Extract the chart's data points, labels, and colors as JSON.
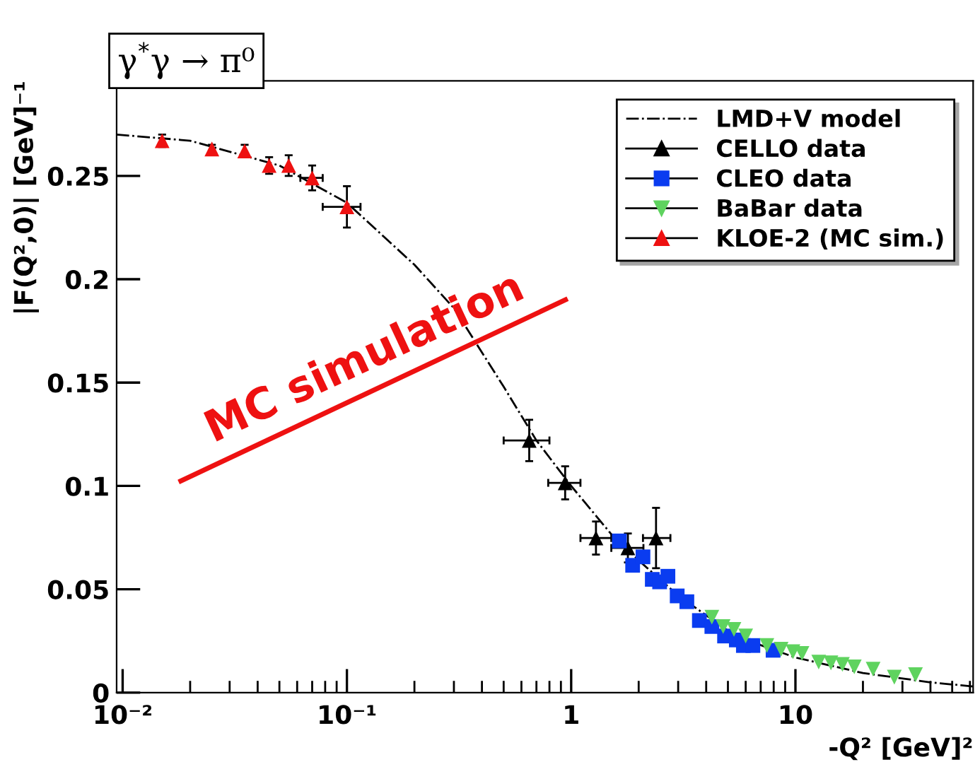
{
  "chart_data": {
    "type": "scatter",
    "title": "γ$^{*}$γ → π⁰",
    "xlabel": "-Q² [GeV]²",
    "ylabel": "|F(Q²,0)| [GeV]⁻¹",
    "log": "x",
    "xlim": [
      0.0094,
      62
    ],
    "ylim": [
      0,
      0.296
    ],
    "xticks": [
      {
        "value": 0.01,
        "label": "10⁻²"
      },
      {
        "value": 0.1,
        "label": "10⁻¹"
      },
      1,
      10
    ],
    "yticks": [
      0,
      0.05,
      0.1,
      0.15,
      0.2,
      0.25
    ],
    "grid": false,
    "legend": "top right",
    "annotations": [
      "MC simulation"
    ],
    "series": [
      {
        "name": "LMD+V model",
        "type": "line",
        "line_style": "dashdot",
        "color": "#000000",
        "x": [
          0.0094,
          0.02,
          0.05,
          0.1,
          0.2,
          0.3,
          0.5,
          0.7,
          1,
          1.5,
          2,
          3,
          5,
          7,
          10,
          20,
          40,
          62
        ],
        "values": [
          0.27,
          0.267,
          0.255,
          0.237,
          0.207,
          0.186,
          0.148,
          0.122,
          0.1,
          0.077,
          0.064,
          0.047,
          0.03,
          0.023,
          0.017,
          0.0095,
          0.005,
          0.003
        ]
      },
      {
        "name": "CELLO data",
        "marker": "triangle",
        "color": "#000000",
        "x": [
          0.65,
          0.94,
          1.29,
          1.79,
          2.39
        ],
        "values": [
          0.122,
          0.1015,
          0.0748,
          0.07,
          0.0748
        ],
        "errors": [
          0.01,
          0.008,
          0.008,
          0.007,
          0.0146
        ],
        "xerrors": [
          [
            0.5,
            0.8
          ],
          [
            0.79,
            1.1
          ],
          [
            1.1,
            1.51
          ],
          [
            1.51,
            2.1
          ],
          [
            2.09,
            2.77
          ]
        ]
      },
      {
        "name": "CLEO data",
        "marker": "square",
        "color": "#0a3cf0",
        "x": [
          1.64,
          1.88,
          2.09,
          2.3,
          2.48,
          2.7,
          2.97,
          3.28,
          3.73,
          4.24,
          4.83,
          5.45,
          5.86,
          6.46,
          7.95
        ],
        "values": [
          0.0734,
          0.0616,
          0.0657,
          0.0548,
          0.0536,
          0.0563,
          0.0468,
          0.044,
          0.0349,
          0.032,
          0.0274,
          0.0255,
          0.0228,
          0.0228,
          0.0205
        ]
      },
      {
        "name": "BaBar data",
        "marker": "triangle_down",
        "color": "#5fd35f",
        "x": [
          4.24,
          4.76,
          5.32,
          6.0,
          7.46,
          8.63,
          9.75,
          10.7,
          12.7,
          14.4,
          16.2,
          18.3,
          22.2,
          27.6,
          34.3
        ],
        "values": [
          0.0365,
          0.032,
          0.0306,
          0.0274,
          0.0228,
          0.021,
          0.0198,
          0.019,
          0.0148,
          0.0144,
          0.0137,
          0.0125,
          0.0114,
          0.0075,
          0.0087
        ]
      },
      {
        "name": "KLOE-2 (MC sim.)",
        "marker": "triangle",
        "color": "#ee1111",
        "x": [
          0.015,
          0.025,
          0.035,
          0.045,
          0.055,
          0.07,
          0.1
        ],
        "values": [
          0.267,
          0.263,
          0.262,
          0.255,
          0.255,
          0.249,
          0.235
        ],
        "errors": [
          0.003,
          0.002,
          0.003,
          0.004,
          0.005,
          0.006,
          0.01
        ],
        "xerrors": [
          null,
          null,
          null,
          null,
          null,
          [
            0.062,
            0.078
          ],
          [
            0.078,
            0.115
          ]
        ]
      }
    ]
  }
}
